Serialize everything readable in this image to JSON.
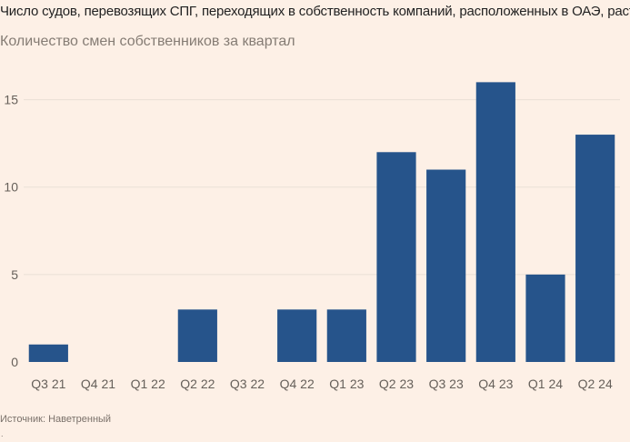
{
  "header": {
    "title": "Число судов, перевозящих СПГ, переходящих в собственность компаний, расположенных в ОАЭ, растет",
    "subtitle": "Количество смен собственников за квартал"
  },
  "footer": {
    "source": "Источник: Наветренный",
    "dot": "."
  },
  "colors": {
    "bar": "#26548b",
    "grid": "#eadfd6",
    "axis_text": "#66605a",
    "background": "#fdf0e6"
  },
  "chart_data": {
    "type": "bar",
    "title": "Число судов, перевозящих СПГ, переходящих в собственность компаний, расположенных в ОАЭ, растет",
    "subtitle": "Количество смен собственников за квартал",
    "categories": [
      "Q3 21",
      "Q4 21",
      "Q1 22",
      "Q2 22",
      "Q3 22",
      "Q4 22",
      "Q1 23",
      "Q2 23",
      "Q3 23",
      "Q4 23",
      "Q1 24",
      "Q2 24"
    ],
    "values": [
      1,
      0,
      0,
      3,
      0,
      3,
      3,
      12,
      11,
      16,
      5,
      13
    ],
    "yticks": [
      0,
      5,
      10,
      15
    ],
    "ylim": [
      0,
      16.8
    ],
    "xlabel": "",
    "ylabel": "",
    "grid": true
  }
}
